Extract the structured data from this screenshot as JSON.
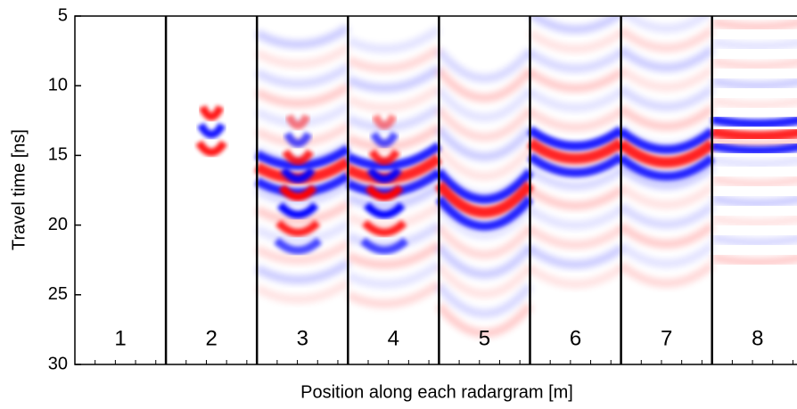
{
  "chart_data": {
    "type": "heatmap",
    "xlabel": "Position along each radargram [m]",
    "ylabel": "Travel time [ns]",
    "panels": [
      "1",
      "2",
      "3",
      "4",
      "5",
      "6",
      "7",
      "8"
    ],
    "ylim": [
      30,
      5
    ],
    "yticks": [
      5,
      10,
      15,
      20,
      25,
      30
    ],
    "colormap": [
      "#0000ff",
      "#ffffff",
      "#ff0000"
    ]
  }
}
